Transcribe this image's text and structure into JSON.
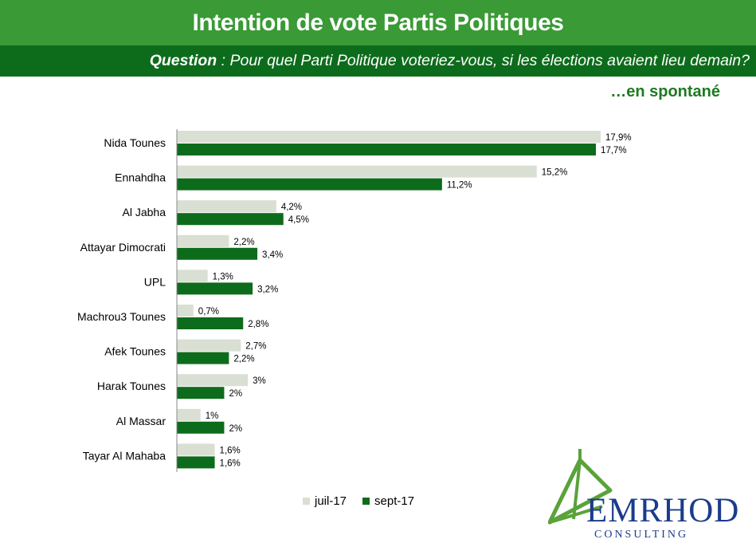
{
  "header": {
    "title": "Intention de vote Partis Politiques",
    "question_label": "Question",
    "question_text": " :  Pour quel Parti Politique voteriez-vous, si les élections avaient lieu demain?",
    "subtitle": "…en spontané"
  },
  "colors": {
    "juil": "#d9dfd2",
    "sept": "#0d6c1b",
    "axis": "#888888"
  },
  "chart_data": {
    "type": "bar",
    "orientation": "horizontal",
    "categories": [
      "Nida Tounes",
      "Ennahdha",
      "Al Jabha",
      "Attayar Dimocrati",
      "UPL",
      "Machrou3 Tounes",
      "Afek Tounes",
      "Harak Tounes",
      "Al Massar",
      "Tayar Al Mahaba"
    ],
    "series": [
      {
        "name": "juil-17",
        "values": [
          17.9,
          15.2,
          4.2,
          2.2,
          1.3,
          0.7,
          2.7,
          3,
          1,
          1.6
        ],
        "labels": [
          "17,9%",
          "15,2%",
          "4,2%",
          "2,2%",
          "1,3%",
          "0,7%",
          "2,7%",
          "3%",
          "1%",
          "1,6%"
        ]
      },
      {
        "name": "sept-17",
        "values": [
          17.7,
          11.2,
          4.5,
          3.4,
          3.2,
          2.8,
          2.2,
          2,
          2,
          1.6
        ],
        "labels": [
          "17,7%",
          "11,2%",
          "4,5%",
          "3,4%",
          "3,2%",
          "2,8%",
          "2,2%",
          "2%",
          "2%",
          "1,6%"
        ]
      }
    ],
    "title": "",
    "xlabel": "",
    "ylabel": "",
    "xlim": [
      0,
      20
    ],
    "grid": false,
    "legend_position": "bottom"
  },
  "legend": {
    "items": [
      "juil-17",
      "sept-17"
    ]
  },
  "logo": {
    "name": "EMRHOD",
    "sub": "CONSULTING"
  }
}
